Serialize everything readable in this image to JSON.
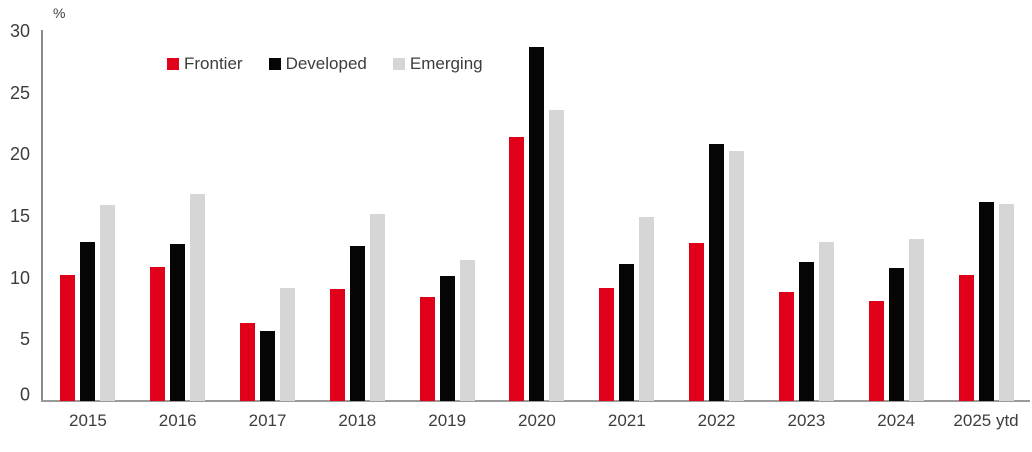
{
  "chart_data": {
    "type": "bar",
    "title": "",
    "unit_label": "%",
    "categories": [
      "2015",
      "2016",
      "2017",
      "2018",
      "2019",
      "2020",
      "2021",
      "2022",
      "2023",
      "2024",
      "2025 ytd"
    ],
    "series": [
      {
        "name": "Frontier",
        "color": "#e10019",
        "values": [
          10.2,
          10.9,
          6.3,
          9.1,
          8.4,
          21.4,
          9.2,
          12.8,
          8.8,
          8.1,
          10.2
        ]
      },
      {
        "name": "Developed",
        "color": "#050505",
        "values": [
          12.9,
          12.7,
          5.7,
          12.6,
          10.1,
          28.7,
          11.1,
          20.8,
          11.3,
          10.8,
          16.1
        ]
      },
      {
        "name": "Emerging",
        "color": "#d6d6d6",
        "values": [
          15.9,
          16.8,
          9.2,
          15.2,
          11.4,
          23.6,
          14.9,
          20.3,
          12.9,
          13.1,
          16.0
        ]
      }
    ],
    "xlabel": "",
    "ylabel": "%",
    "ylim": [
      0,
      30
    ],
    "yticks": [
      0,
      5,
      10,
      15,
      20,
      25,
      30
    ],
    "grid": false,
    "legend_position": "top-left-inset",
    "axis_color": "#8a8a8a",
    "text_color": "#3d3d3d",
    "background_color": "#ffffff"
  }
}
